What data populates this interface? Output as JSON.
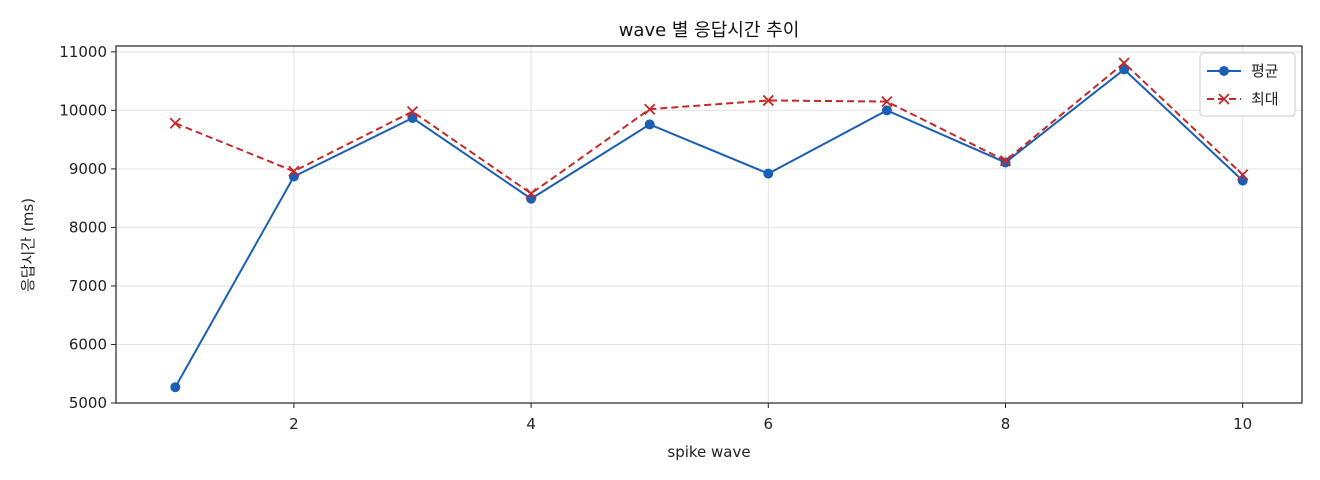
{
  "chart_data": {
    "type": "line",
    "title": "wave 별 응답시간 추이",
    "xlabel": "spike wave",
    "ylabel": "응답시간 (ms)",
    "x": [
      1,
      2,
      3,
      4,
      5,
      6,
      7,
      8,
      9,
      10
    ],
    "xlim": [
      0.5,
      10.5
    ],
    "ylim": [
      5000,
      11100
    ],
    "xticks": [
      2,
      4,
      6,
      8,
      10
    ],
    "yticks": [
      5000,
      6000,
      7000,
      8000,
      9000,
      10000,
      11000
    ],
    "grid": true,
    "legend_position": "top-right",
    "series": [
      {
        "name": "평균",
        "color": "#1a5fb4",
        "marker": "circle",
        "line": "solid",
        "values": [
          5270,
          8870,
          9870,
          8490,
          9760,
          8920,
          10000,
          9110,
          10700,
          8800
        ]
      },
      {
        "name": "최대",
        "color": "#c62828",
        "marker": "x",
        "line": "dashed",
        "values": [
          9780,
          8960,
          9980,
          8580,
          10020,
          10170,
          10150,
          9140,
          10810,
          8900
        ]
      }
    ]
  }
}
